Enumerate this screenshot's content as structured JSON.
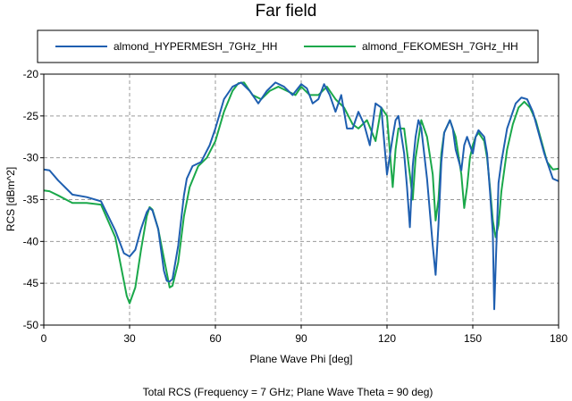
{
  "chart_data": {
    "type": "line",
    "title": "Far field",
    "xlabel": "Plane Wave Phi [deg]",
    "ylabel": "RCS [dBm^2]",
    "caption": "Total RCS (Frequency = 7 GHz; Plane Wave Theta = 90 deg)",
    "xlim": [
      0,
      180
    ],
    "ylim": [
      -50,
      -20
    ],
    "xticks": [
      0,
      30,
      60,
      90,
      120,
      150,
      180
    ],
    "yticks": [
      -20,
      -25,
      -30,
      -35,
      -40,
      -45,
      -50
    ],
    "xtick_labels": [
      "0",
      "30",
      "60",
      "90",
      "120",
      "150",
      "180"
    ],
    "ytick_labels": [
      "-20",
      "-25",
      "-30",
      "-35",
      "-40",
      "-45",
      "-50"
    ],
    "grid": true,
    "legend_position": "top",
    "series": [
      {
        "name": "almond_HYPERMESH_7GHz_HH",
        "color": "#1f5fb0",
        "x": [
          0,
          2,
          5,
          10,
          15,
          20,
          25,
          28,
          30,
          32,
          34,
          36,
          37,
          38,
          40,
          42,
          43,
          44,
          45,
          47,
          49,
          50,
          52,
          55,
          58,
          60,
          63,
          66,
          69,
          72,
          75,
          78,
          81,
          84,
          87,
          90,
          92,
          94,
          96,
          98,
          100,
          102,
          104,
          106,
          108,
          110,
          112,
          114,
          116,
          118,
          119,
          120,
          122,
          123,
          124,
          126,
          127,
          128,
          129,
          130,
          131,
          132,
          134,
          136,
          137,
          138,
          139,
          140,
          142,
          143,
          144,
          146,
          147,
          148,
          149,
          150,
          151,
          152,
          154,
          155,
          156,
          157,
          157.5,
          158,
          159,
          160,
          162,
          163,
          165,
          167,
          169,
          171,
          173,
          175,
          177,
          178,
          180
        ],
        "y": [
          -31.4,
          -31.5,
          -32.7,
          -34.4,
          -34.7,
          -35.2,
          -38.7,
          -41.4,
          -41.8,
          -41.0,
          -38.5,
          -36.5,
          -36.0,
          -36.3,
          -38.5,
          -43.5,
          -44.7,
          -44.8,
          -44.5,
          -40.5,
          -34.5,
          -32.5,
          -31.0,
          -30.5,
          -28.5,
          -26.5,
          -23.0,
          -21.5,
          -21.0,
          -22.0,
          -23.5,
          -22.0,
          -21.0,
          -21.5,
          -22.5,
          -21.2,
          -21.7,
          -23.5,
          -23.0,
          -21.2,
          -22.5,
          -24.5,
          -22.5,
          -26.5,
          -26.5,
          -24.5,
          -26.0,
          -28.5,
          -23.5,
          -24.0,
          -28.0,
          -32.0,
          -27.5,
          -25.5,
          -25.0,
          -29.5,
          -33.5,
          -38.3,
          -31.0,
          -27.5,
          -25.5,
          -26.5,
          -32.5,
          -40.5,
          -44.0,
          -38.0,
          -30.5,
          -27.0,
          -25.5,
          -26.5,
          -29.0,
          -31.5,
          -28.5,
          -27.5,
          -28.5,
          -29.5,
          -27.5,
          -26.7,
          -27.5,
          -29.5,
          -34.0,
          -39.0,
          -48.1,
          -43.0,
          -33.0,
          -30.5,
          -26.5,
          -25.5,
          -23.5,
          -22.8,
          -23.0,
          -24.5,
          -27.0,
          -29.5,
          -31.5,
          -32.5,
          -32.8
        ]
      },
      {
        "name": "almond_FEKOMESH_7GHz_HH",
        "color": "#1aa84a",
        "x": [
          0,
          2,
          5,
          10,
          15,
          20,
          25,
          27,
          29,
          30,
          32,
          34,
          36,
          37,
          38,
          40,
          42,
          44,
          45,
          47,
          49,
          51,
          54,
          57,
          60,
          63,
          66,
          68,
          70,
          73,
          76,
          79,
          82,
          85,
          88,
          90,
          93,
          96,
          99,
          102,
          105,
          108,
          110,
          113,
          116,
          118,
          120,
          122,
          123,
          124,
          126,
          128,
          129,
          130,
          132,
          134,
          136,
          137,
          138,
          139,
          140,
          142,
          144,
          146,
          147,
          148,
          149,
          150,
          151,
          152,
          154,
          155,
          156,
          157,
          158,
          159,
          160,
          162,
          164,
          166,
          168,
          170,
          172,
          174,
          176,
          178,
          180
        ],
        "y": [
          -33.9,
          -34.0,
          -34.5,
          -35.4,
          -35.4,
          -35.6,
          -39.5,
          -43.0,
          -46.5,
          -47.4,
          -45.5,
          -41.0,
          -37.0,
          -35.9,
          -36.2,
          -38.5,
          -42.0,
          -45.5,
          -45.3,
          -42.5,
          -37.0,
          -33.5,
          -31.0,
          -30.0,
          -28.0,
          -24.5,
          -22.0,
          -21.1,
          -21.0,
          -22.5,
          -23.0,
          -22.0,
          -21.5,
          -22.0,
          -22.5,
          -21.5,
          -22.5,
          -22.5,
          -21.5,
          -23.0,
          -24.0,
          -26.0,
          -26.5,
          -25.5,
          -28.0,
          -24.0,
          -25.0,
          -33.5,
          -29.0,
          -26.5,
          -26.5,
          -32.0,
          -35.0,
          -30.0,
          -25.5,
          -27.5,
          -32.0,
          -37.5,
          -35.0,
          -29.5,
          -27.0,
          -25.5,
          -27.5,
          -32.0,
          -36.0,
          -33.5,
          -30.0,
          -28.5,
          -27.5,
          -27.0,
          -28.0,
          -30.0,
          -33.5,
          -37.5,
          -39.5,
          -38.0,
          -34.0,
          -29.0,
          -26.0,
          -24.0,
          -23.3,
          -24.0,
          -25.5,
          -28.0,
          -30.5,
          -31.4,
          -31.3
        ]
      }
    ]
  }
}
